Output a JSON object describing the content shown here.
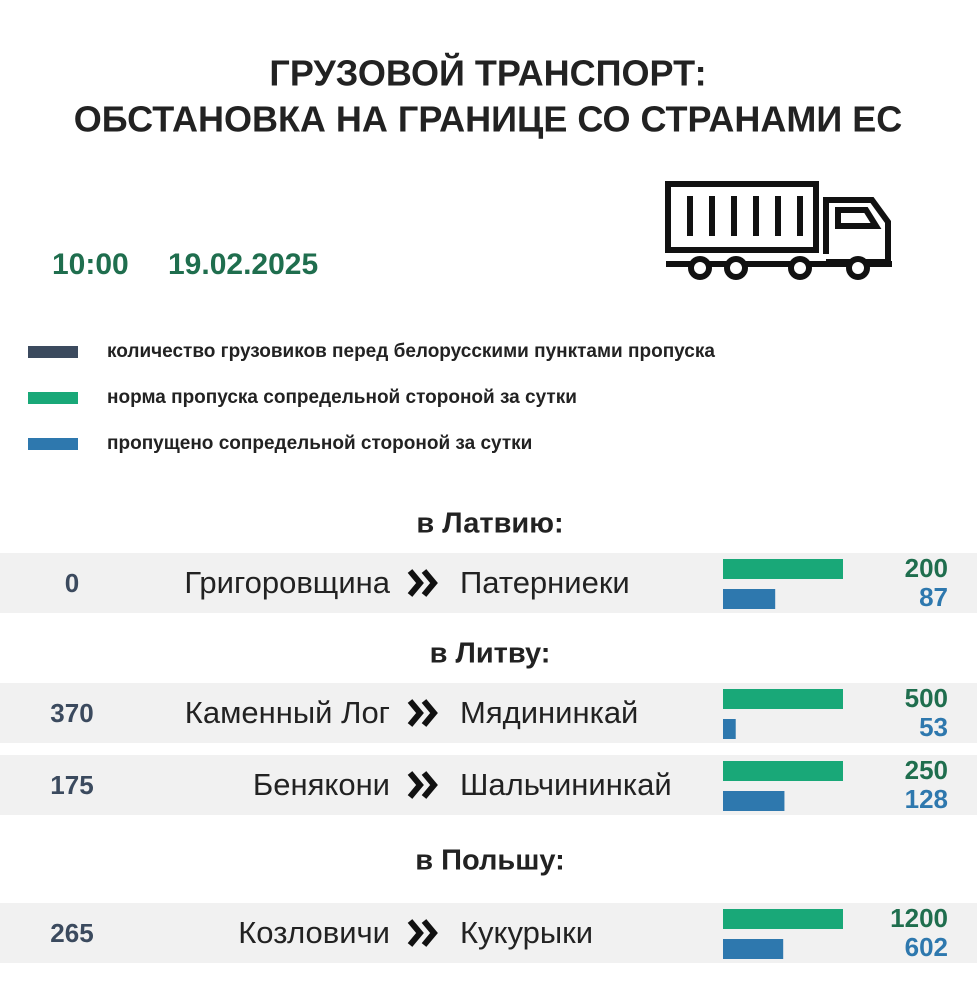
{
  "header": {
    "title_lines": [
      "ГРУЗОВОЙ ТРАНСПОРТ:",
      "ОБСТАНОВКА НА ГРАНИЦЕ СО СТРАНАМИ ЕС"
    ]
  },
  "timestamp": {
    "time": "10:00",
    "date": "19.02.2025"
  },
  "legend": [
    {
      "label": "количество грузовиков перед белорусскими пунктами пропуска",
      "color": "#3b4a5e"
    },
    {
      "label": "норма пропуска сопредельной стороной за сутки",
      "color": "#19a878"
    },
    {
      "label": "пропущено сопредельной стороной за сутки",
      "color": "#2e78ae"
    }
  ],
  "sections": [
    {
      "heading": "в Латвию:",
      "rows": [
        {
          "queue": 0,
          "from": "Григоровщина",
          "to": "Патерниеки",
          "norm": 200,
          "passed": 87
        }
      ]
    },
    {
      "heading": "в Литву:",
      "rows": [
        {
          "queue": 370,
          "from": "Каменный Лог",
          "to": "Мядининкай",
          "norm": 500,
          "passed": 53
        },
        {
          "queue": 175,
          "from": "Бенякони",
          "to": "Шальчининкай",
          "norm": 250,
          "passed": 128
        }
      ]
    },
    {
      "heading": "в Польшу:",
      "rows": [
        {
          "queue": 265,
          "from": "Козловичи",
          "to": "Кукурыки",
          "norm": 1200,
          "passed": 602
        }
      ]
    }
  ]
}
